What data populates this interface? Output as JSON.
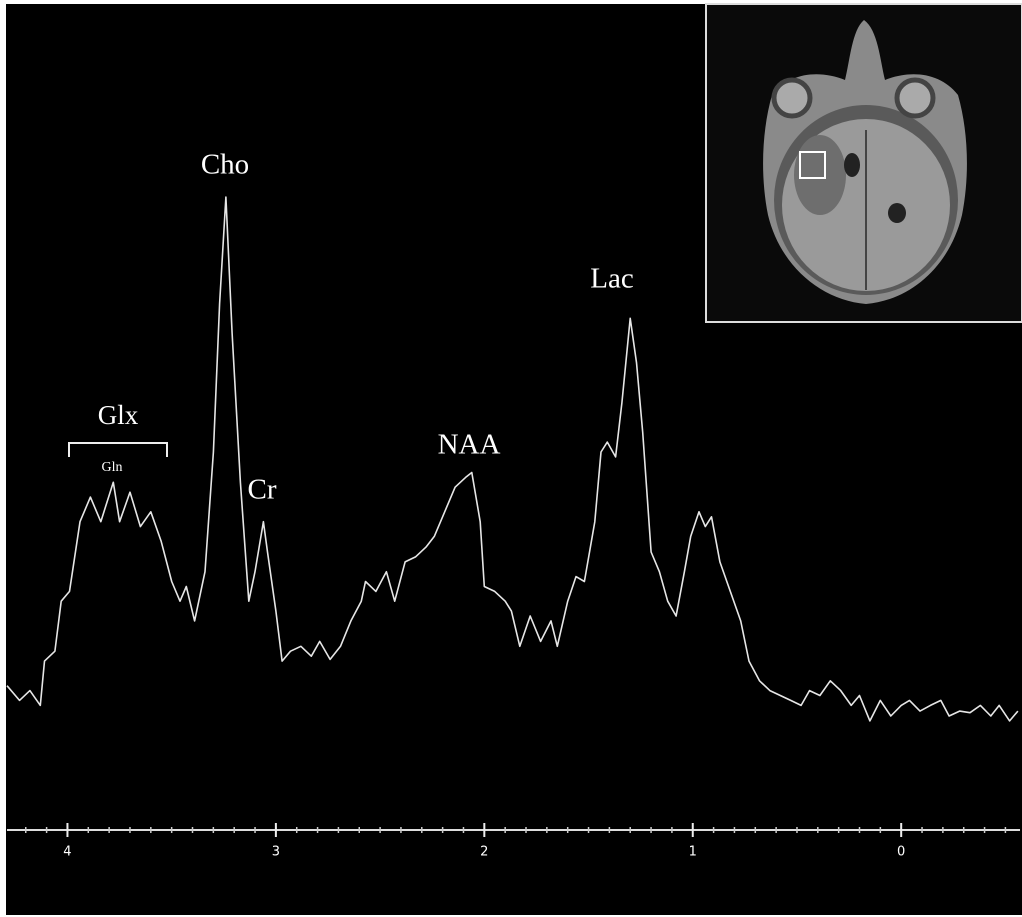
{
  "chart_data": {
    "type": "line",
    "x": [
      4.29,
      4.23,
      4.18,
      4.13,
      4.11,
      4.06,
      4.03,
      3.99,
      3.94,
      3.89,
      3.84,
      3.78,
      3.75,
      3.7,
      3.65,
      3.6,
      3.55,
      3.5,
      3.46,
      3.43,
      3.39,
      3.34,
      3.3,
      3.27,
      3.24,
      3.21,
      3.17,
      3.13,
      3.1,
      3.06,
      3.04,
      3.0,
      2.97,
      2.93,
      2.88,
      2.83,
      2.79,
      2.74,
      2.69,
      2.64,
      2.59,
      2.57,
      2.52,
      2.47,
      2.43,
      2.38,
      2.33,
      2.28,
      2.24,
      2.19,
      2.14,
      2.09,
      2.06,
      2.02,
      2.0,
      1.95,
      1.9,
      1.87,
      1.83,
      1.78,
      1.73,
      1.68,
      1.65,
      1.6,
      1.56,
      1.52,
      1.47,
      1.44,
      1.41,
      1.37,
      1.34,
      1.3,
      1.27,
      1.24,
      1.2,
      1.16,
      1.12,
      1.08,
      1.04,
      1.01,
      0.97,
      0.94,
      0.91,
      0.87,
      0.82,
      0.77,
      0.73,
      0.68,
      0.63,
      0.58,
      0.53,
      0.48,
      0.44,
      0.39,
      0.34,
      0.29,
      0.24,
      0.2,
      0.15,
      0.1,
      0.05,
      0.0,
      -0.04,
      -0.09,
      -0.14,
      -0.19,
      -0.23,
      -0.28,
      -0.33,
      -0.38,
      -0.43,
      -0.47,
      -0.52,
      -0.56
    ],
    "series": [
      {
        "color": "#e6e6e6",
        "values": [
          17.6,
          15.8,
          17.0,
          15.2,
          20.6,
          21.8,
          27.9,
          29.1,
          37.6,
          40.6,
          37.6,
          42.4,
          37.6,
          41.2,
          37.0,
          38.8,
          35.2,
          30.3,
          27.9,
          29.7,
          25.5,
          31.5,
          46.1,
          64.2,
          77.2,
          60.6,
          42.4,
          27.9,
          31.5,
          37.6,
          33.9,
          26.7,
          20.6,
          21.8,
          22.4,
          21.2,
          23.0,
          20.8,
          22.4,
          25.5,
          27.9,
          30.3,
          29.1,
          31.5,
          27.9,
          32.7,
          33.3,
          34.5,
          35.8,
          38.8,
          41.8,
          43.0,
          43.6,
          37.6,
          29.7,
          29.1,
          27.9,
          26.7,
          22.4,
          26.1,
          23.0,
          25.5,
          22.4,
          27.9,
          30.9,
          30.3,
          37.6,
          46.1,
          47.3,
          45.5,
          52.1,
          62.4,
          57.0,
          48.5,
          33.9,
          31.5,
          27.9,
          26.1,
          31.5,
          35.8,
          38.8,
          37.0,
          38.2,
          32.7,
          29.1,
          25.5,
          20.6,
          18.2,
          17.0,
          16.4,
          15.8,
          15.2,
          17.0,
          16.4,
          18.2,
          17.0,
          15.2,
          16.4,
          13.3,
          15.8,
          13.9,
          15.2,
          15.8,
          14.5,
          15.2,
          15.8,
          13.9,
          14.5,
          14.3,
          15.2,
          13.9,
          15.2,
          13.3,
          14.5
        ]
      }
    ],
    "xlim": [
      4.29,
      -0.57
    ],
    "xticks": [
      4,
      3,
      2,
      1,
      0
    ],
    "ylim": [
      0,
      100
    ],
    "annotations": [
      "Cho",
      "Cr",
      "NAA",
      "Lac",
      "Glx",
      "Gln"
    ]
  }
}
